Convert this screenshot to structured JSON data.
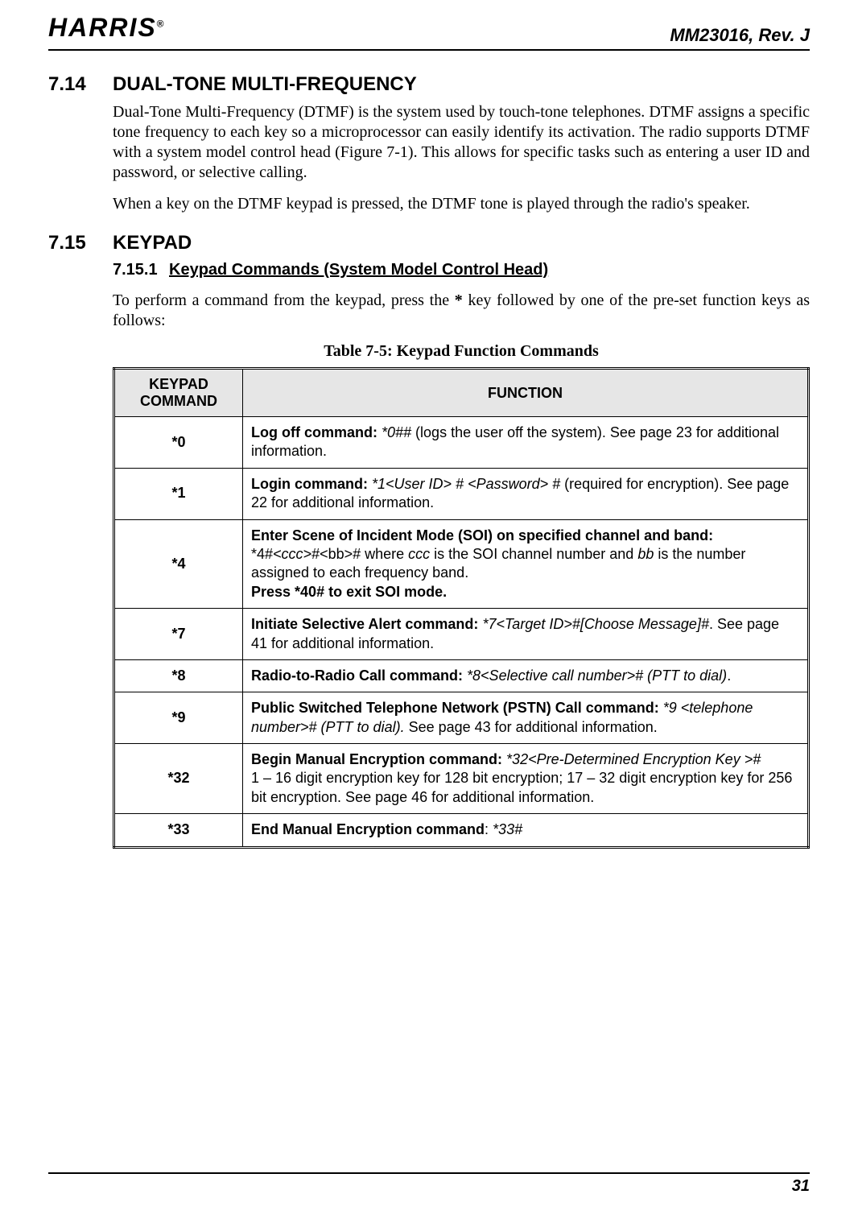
{
  "header": {
    "logo_text": "HARRIS",
    "logo_reg": "®",
    "doc_id": "MM23016, Rev. J"
  },
  "section_714": {
    "num": "7.14",
    "title": "DUAL-TONE MULTI-FREQUENCY",
    "para1": "Dual-Tone Multi-Frequency (DTMF) is the system used by touch-tone telephones. DTMF assigns a specific tone frequency to each key so a microprocessor can easily identify its activation. The radio supports DTMF with a system model control head (Figure 7-1). This allows for specific tasks such as entering a user ID and password, or selective calling.",
    "para2": "When a key on the DTMF keypad is pressed, the DTMF tone is played through the radio's speaker."
  },
  "section_715": {
    "num": "7.15",
    "title": "KEYPAD",
    "sub_num": "7.15.1",
    "sub_title": "Keypad Commands (System Model Control Head)",
    "intro_a": "To perform a command from the keypad, press the ",
    "intro_key": "*",
    "intro_b": " key followed by one of the pre-set function keys as follows:",
    "table_caption": "Table 7-5: Keypad Function Commands",
    "table": {
      "col1": "KEYPAD COMMAND",
      "col2": "FUNCTION",
      "rows": [
        {
          "cmd": "*0",
          "html": "<span class=\"bold\">Log off command:</span>  <span class=\"ital\">*0##</span> (logs the user off the system). See page 23 for additional information."
        },
        {
          "cmd": "*1",
          "html": "<span class=\"bold\">Login command:</span>  <span class=\"ital\">*1&lt;User ID&gt; # &lt;Password&gt; #</span> (required for encryption). See page 22 for additional information."
        },
        {
          "cmd": "*4",
          "html": "<span class=\"bold\">Enter Scene of Incident Mode (SOI) on specified channel and band:</span><br>*4#<span class=\"ital\">&lt;ccc&gt;</span>#&lt;bb&gt;# where <span class=\"ital\">ccc</span> is the SOI channel number and <span class=\"ital\">bb</span> is the number assigned to each frequency band.<br><span class=\"bold\">Press *40# to exit SOI mode.</span>"
        },
        {
          "cmd": "*7",
          "html": "<span class=\"bold\">Initiate Selective Alert command:</span>  <span class=\"ital\">*7&lt;Target ID&gt;#[Choose Message]#</span>. See page 41 for additional information."
        },
        {
          "cmd": "*8",
          "html": "<span class=\"bold\">Radio-to-Radio Call command:</span> <span class=\"ital\">*8&lt;Selective call number&gt;# (PTT to dial)</span>."
        },
        {
          "cmd": "*9",
          "html": "<span class=\"bold\">Public Switched Telephone Network (PSTN) Call command:</span>  <span class=\"ital\">*9 &lt;telephone number&gt;# (PTT to dial).</span> See page 43 for additional information."
        },
        {
          "cmd": "*32",
          "html": "<span class=\"bold\">Begin Manual Encryption command:</span>  <span class=\"ital\">*32&lt;Pre-Determined Encryption Key &gt;#</span><br>1 – 16 digit encryption key for 128 bit encryption; 17 – 32 digit encryption key for 256 bit encryption. See page 46 for additional information."
        },
        {
          "cmd": "*33",
          "html": "<span class=\"bold\">End Manual Encryption command</span>: <span class=\"ital\">*33#</span>"
        }
      ]
    }
  },
  "footer": {
    "page_num": "31"
  }
}
